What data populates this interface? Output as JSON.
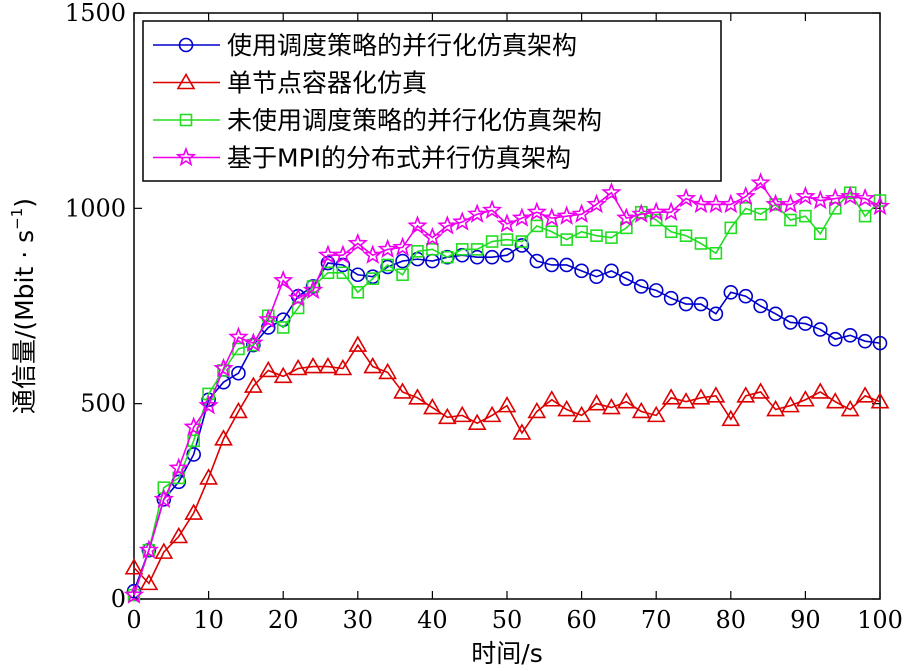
{
  "chart_data": {
    "type": "line",
    "xlabel": "时间/s",
    "ylabel": "通信量/(Mbit · s",
    "ylabel_exponent": "−1",
    "ylabel_close": ")",
    "xlim": [
      0,
      100
    ],
    "ylim": [
      0,
      1500
    ],
    "x_ticks": [
      0,
      10,
      20,
      30,
      40,
      50,
      60,
      70,
      80,
      90,
      100
    ],
    "y_ticks": [
      0,
      500,
      1000,
      1500
    ],
    "x_tick_labels": [
      "0",
      "10",
      "20",
      "30",
      "40",
      "50",
      "60",
      "70",
      "80",
      "90",
      "100"
    ],
    "y_tick_labels": [
      "0",
      "500",
      "1000",
      "1500"
    ],
    "grid": false,
    "legend_position": "top-left",
    "series": [
      {
        "name": "使用调度策略的并行化仿真架构",
        "color": "#0000cc",
        "marker": "circle",
        "x": [
          0,
          2,
          4,
          6,
          8,
          10,
          12,
          14,
          16,
          18,
          20,
          22,
          24,
          26,
          28,
          30,
          32,
          34,
          36,
          38,
          40,
          42,
          44,
          46,
          48,
          50,
          52,
          54,
          56,
          58,
          60,
          62,
          64,
          66,
          68,
          70,
          72,
          74,
          76,
          78,
          80,
          82,
          84,
          86,
          88,
          90,
          92,
          94,
          96,
          98,
          100
        ],
        "y": [
          20,
          125,
          255,
          300,
          370,
          510,
          555,
          578,
          650,
          695,
          715,
          775,
          800,
          860,
          855,
          830,
          825,
          850,
          865,
          870,
          865,
          875,
          880,
          875,
          875,
          880,
          905,
          865,
          855,
          855,
          840,
          825,
          840,
          820,
          800,
          790,
          770,
          755,
          755,
          730,
          785,
          775,
          750,
          730,
          708,
          705,
          690,
          665,
          675,
          660,
          655
        ]
      },
      {
        "name": "单节点容器化仿真",
        "color": "#dd0000",
        "marker": "triangle",
        "x": [
          0,
          2,
          4,
          6,
          8,
          10,
          12,
          14,
          16,
          18,
          20,
          22,
          24,
          26,
          28,
          30,
          32,
          34,
          36,
          38,
          40,
          42,
          44,
          46,
          48,
          50,
          52,
          54,
          56,
          58,
          60,
          62,
          64,
          66,
          68,
          70,
          72,
          74,
          76,
          78,
          80,
          82,
          84,
          86,
          88,
          90,
          92,
          94,
          96,
          98,
          100
        ],
        "y": [
          80,
          40,
          120,
          160,
          220,
          310,
          410,
          480,
          545,
          585,
          570,
          590,
          595,
          595,
          590,
          650,
          595,
          580,
          530,
          515,
          490,
          465,
          470,
          450,
          470,
          495,
          425,
          480,
          510,
          485,
          470,
          500,
          490,
          505,
          480,
          470,
          515,
          505,
          515,
          520,
          460,
          520,
          530,
          485,
          495,
          510,
          530,
          505,
          485,
          520,
          505
        ]
      },
      {
        "name": "未使用调度策略的并行化仿真架构",
        "color": "#22dd22",
        "marker": "square",
        "x": [
          0,
          2,
          4,
          6,
          8,
          10,
          12,
          14,
          16,
          18,
          20,
          22,
          24,
          26,
          28,
          30,
          32,
          34,
          36,
          38,
          40,
          42,
          44,
          46,
          48,
          50,
          52,
          54,
          56,
          58,
          60,
          62,
          64,
          66,
          68,
          70,
          72,
          74,
          76,
          78,
          80,
          82,
          84,
          86,
          88,
          90,
          92,
          94,
          96,
          98,
          100
        ],
        "y": [
          10,
          125,
          285,
          310,
          405,
          525,
          585,
          640,
          650,
          725,
          695,
          745,
          800,
          835,
          835,
          785,
          820,
          855,
          830,
          890,
          895,
          875,
          895,
          895,
          915,
          920,
          915,
          955,
          940,
          920,
          940,
          930,
          925,
          950,
          990,
          970,
          940,
          930,
          910,
          885,
          950,
          1000,
          985,
          1010,
          970,
          980,
          935,
          1000,
          1040,
          980,
          1020
        ]
      },
      {
        "name": "基于MPI的分布式并行仿真架构",
        "color": "#ee00ee",
        "marker": "star",
        "x": [
          0,
          2,
          4,
          6,
          8,
          10,
          12,
          14,
          16,
          18,
          20,
          22,
          24,
          26,
          28,
          30,
          32,
          34,
          36,
          38,
          40,
          42,
          44,
          46,
          48,
          50,
          52,
          54,
          56,
          58,
          60,
          62,
          64,
          66,
          68,
          70,
          72,
          74,
          76,
          78,
          80,
          82,
          84,
          86,
          88,
          90,
          92,
          94,
          96,
          98,
          100
        ],
        "y": [
          10,
          125,
          255,
          335,
          440,
          495,
          590,
          670,
          655,
          715,
          815,
          770,
          790,
          880,
          880,
          910,
          880,
          895,
          900,
          955,
          925,
          955,
          965,
          985,
          995,
          960,
          975,
          990,
          975,
          980,
          985,
          1010,
          1040,
          975,
          985,
          990,
          990,
          1025,
          1010,
          1010,
          1010,
          1030,
          1065,
          1010,
          1010,
          1030,
          1020,
          1025,
          1030,
          1025,
          1005
        ]
      }
    ]
  }
}
